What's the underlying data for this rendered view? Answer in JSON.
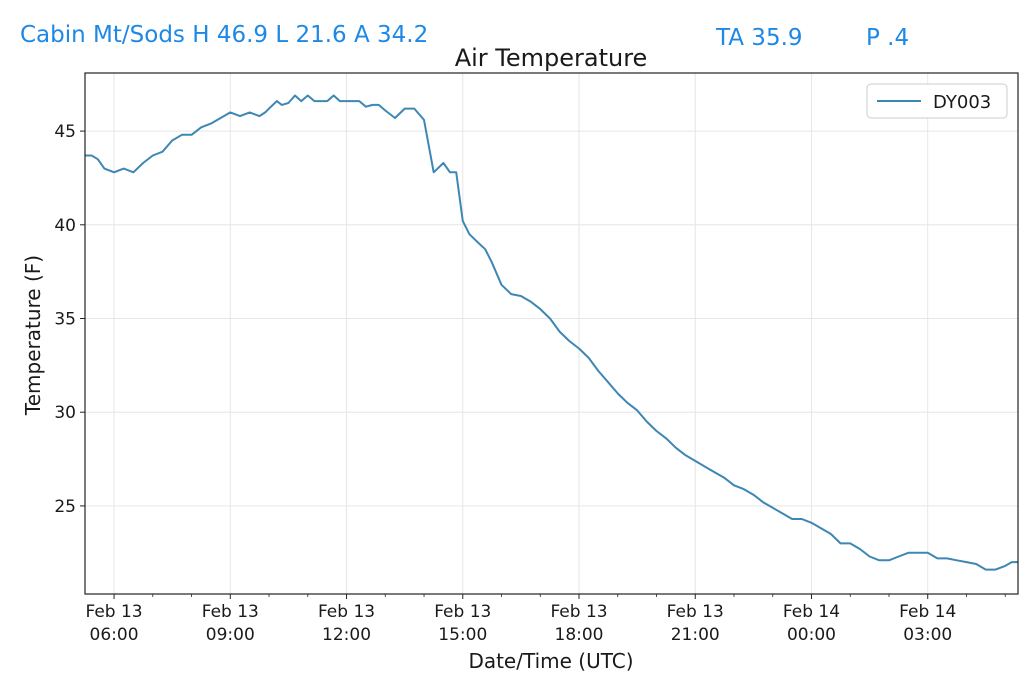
{
  "header": {
    "station_summary": "Cabin Mt/Sods H 46.9 L 21.6 A 34.2",
    "ta": "TA 35.9",
    "p": "P .4"
  },
  "colors": {
    "header_text": "#1e88e5",
    "series_line": "#3d87b4",
    "grid": "#e6e6e6",
    "axis": "#222222"
  },
  "chart_data": {
    "type": "line",
    "title": "Air Temperature",
    "xlabel": "Date/Time (UTC)",
    "ylabel": "Temperature (F)",
    "grid": true,
    "legend_position": "top-right",
    "xlim": [
      5.25,
      29.33
    ],
    "ylim": [
      20.3,
      48.1
    ],
    "y_ticks": [
      25,
      30,
      35,
      40,
      45
    ],
    "x_ticks": [
      {
        "x": 6,
        "line1": "Feb 13",
        "line2": "06:00"
      },
      {
        "x": 9,
        "line1": "Feb 13",
        "line2": "09:00"
      },
      {
        "x": 12,
        "line1": "Feb 13",
        "line2": "12:00"
      },
      {
        "x": 15,
        "line1": "Feb 13",
        "line2": "15:00"
      },
      {
        "x": 18,
        "line1": "Feb 13",
        "line2": "18:00"
      },
      {
        "x": 21,
        "line1": "Feb 13",
        "line2": "21:00"
      },
      {
        "x": 24,
        "line1": "Feb 14",
        "line2": "00:00"
      },
      {
        "x": 27,
        "line1": "Feb 14",
        "line2": "03:00"
      }
    ],
    "series": [
      {
        "name": "DY003",
        "color": "#3d87b4",
        "x": [
          5.25,
          5.42,
          5.58,
          5.75,
          6.0,
          6.25,
          6.5,
          6.75,
          7.0,
          7.25,
          7.5,
          7.75,
          8.0,
          8.25,
          8.5,
          8.75,
          9.0,
          9.25,
          9.5,
          9.75,
          9.9,
          10.0,
          10.2,
          10.33,
          10.5,
          10.67,
          10.83,
          11.0,
          11.17,
          11.33,
          11.5,
          11.67,
          11.83,
          12.0,
          12.17,
          12.33,
          12.5,
          12.67,
          12.83,
          13.0,
          13.25,
          13.5,
          13.75,
          14.0,
          14.25,
          14.5,
          14.67,
          14.83,
          15.0,
          15.17,
          15.42,
          15.58,
          15.75,
          16.0,
          16.25,
          16.5,
          16.75,
          17.0,
          17.25,
          17.5,
          17.75,
          18.0,
          18.25,
          18.5,
          18.75,
          19.0,
          19.25,
          19.5,
          19.75,
          20.0,
          20.25,
          20.5,
          20.75,
          21.0,
          21.25,
          21.5,
          21.75,
          22.0,
          22.25,
          22.5,
          22.75,
          23.0,
          23.25,
          23.5,
          23.75,
          24.0,
          24.25,
          24.5,
          24.75,
          25.0,
          25.25,
          25.5,
          25.75,
          26.0,
          26.25,
          26.5,
          26.75,
          27.0,
          27.25,
          27.5,
          27.75,
          28.0,
          28.25,
          28.5,
          28.75,
          29.0,
          29.17,
          29.33
        ],
        "y": [
          43.7,
          43.7,
          43.5,
          43.0,
          42.8,
          43.0,
          42.8,
          43.3,
          43.7,
          43.9,
          44.5,
          44.8,
          44.8,
          45.2,
          45.4,
          45.7,
          46.0,
          45.8,
          46.0,
          45.8,
          46.0,
          46.2,
          46.6,
          46.4,
          46.5,
          46.9,
          46.6,
          46.9,
          46.6,
          46.6,
          46.6,
          46.9,
          46.6,
          46.6,
          46.6,
          46.6,
          46.3,
          46.4,
          46.4,
          46.1,
          45.7,
          46.2,
          46.2,
          45.6,
          42.8,
          43.3,
          42.8,
          42.8,
          40.2,
          39.5,
          39.0,
          38.7,
          38.0,
          36.8,
          36.3,
          36.2,
          35.9,
          35.5,
          35.0,
          34.3,
          33.8,
          33.4,
          32.9,
          32.2,
          31.6,
          31.0,
          30.5,
          30.1,
          29.5,
          29.0,
          28.6,
          28.1,
          27.7,
          27.4,
          27.1,
          26.8,
          26.5,
          26.1,
          25.9,
          25.6,
          25.2,
          24.9,
          24.6,
          24.3,
          24.3,
          24.1,
          23.8,
          23.5,
          23.0,
          23.0,
          22.7,
          22.3,
          22.1,
          22.1,
          22.3,
          22.5,
          22.5,
          22.5,
          22.2,
          22.2,
          22.1,
          22.0,
          21.9,
          21.6,
          21.6,
          21.8,
          22.0,
          22.0
        ]
      }
    ]
  }
}
